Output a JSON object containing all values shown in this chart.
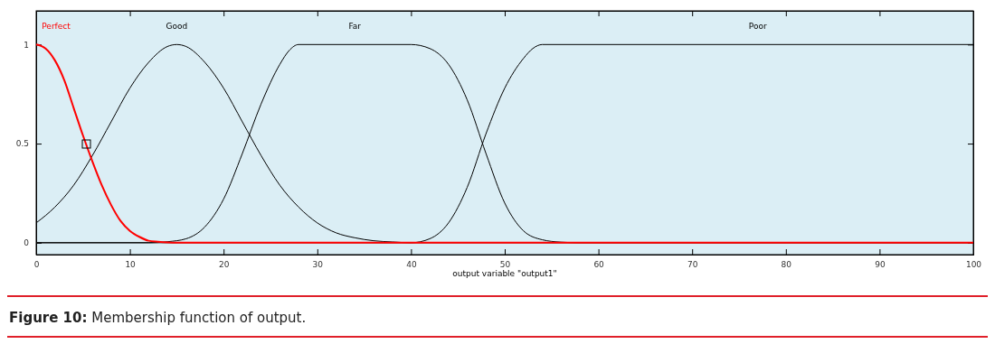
{
  "chart_data": {
    "type": "line",
    "xlabel": "output variable \"output1\"",
    "xlim": [
      0,
      100
    ],
    "xticks": [
      0,
      10,
      20,
      30,
      40,
      50,
      60,
      70,
      80,
      90,
      100
    ],
    "ylim": [
      -0.06,
      1.17
    ],
    "yticks": [
      0,
      0.5,
      1
    ],
    "grid": false,
    "marker": "none",
    "line_style": "solid",
    "series": [
      {
        "name": "Perfect",
        "color": "#ff0000",
        "x": [
          0,
          1,
          2,
          3,
          4,
          5,
          6,
          7,
          8,
          9,
          10,
          11,
          12,
          13,
          15,
          20,
          30,
          40,
          50,
          60,
          70,
          80,
          90,
          100
        ],
        "values": [
          1,
          0.98,
          0.92,
          0.82,
          0.68,
          0.54,
          0.41,
          0.29,
          0.19,
          0.11,
          0.06,
          0.03,
          0.01,
          0.005,
          0,
          0,
          0,
          0,
          0,
          0,
          0,
          0,
          0,
          0
        ]
      },
      {
        "name": "Good",
        "color": "#000000",
        "x": [
          0,
          2,
          4,
          6,
          8,
          10,
          12,
          14,
          15,
          16,
          18,
          20,
          22,
          24,
          26,
          28,
          30,
          32,
          34,
          36,
          38,
          40,
          50,
          100
        ],
        "values": [
          0.1,
          0.18,
          0.29,
          0.44,
          0.61,
          0.78,
          0.91,
          0.99,
          1,
          0.99,
          0.91,
          0.78,
          0.61,
          0.44,
          0.29,
          0.18,
          0.1,
          0.05,
          0.025,
          0.01,
          0.004,
          0,
          0,
          0
        ]
      },
      {
        "name": "Far",
        "color": "#000000",
        "x": [
          0,
          12,
          14,
          16,
          18,
          20,
          22,
          24,
          26,
          27,
          28,
          40,
          42,
          44,
          46,
          48,
          50,
          52,
          54,
          56,
          58,
          100
        ],
        "values": [
          0,
          0,
          0.005,
          0.02,
          0.08,
          0.22,
          0.45,
          0.7,
          0.9,
          0.97,
          1,
          1,
          0.98,
          0.9,
          0.72,
          0.45,
          0.2,
          0.06,
          0.015,
          0.003,
          0,
          0
        ]
      },
      {
        "name": "Poor",
        "color": "#000000",
        "x": [
          0,
          40,
          42,
          44,
          46,
          48,
          50,
          52,
          53,
          54,
          100
        ],
        "values": [
          0,
          0,
          0.02,
          0.1,
          0.28,
          0.55,
          0.78,
          0.93,
          0.98,
          1,
          1
        ]
      }
    ],
    "annotations": [
      "Figure 10: Membership function of output."
    ]
  }
}
